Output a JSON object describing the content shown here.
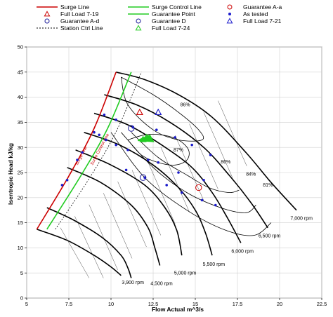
{
  "chart_data": {
    "type": "line",
    "title": "",
    "xlabel": "Flow Actual m^3/s",
    "ylabel": "Isentropic Head kJ/kg",
    "xlim": [
      5,
      22.5
    ],
    "ylim": [
      0,
      50
    ],
    "xticks": [
      "5",
      "7.5",
      "10",
      "12.5",
      "15",
      "17.5",
      "20",
      "22.5"
    ],
    "yticks": [
      "0",
      "5",
      "10",
      "15",
      "20",
      "25",
      "30",
      "35",
      "40",
      "45",
      "50"
    ],
    "grid": true,
    "legend_position": "top",
    "legend": [
      {
        "key": "surge",
        "label": "Surge Line",
        "symbol": "line",
        "color": "#cc0000",
        "dash": ""
      },
      {
        "key": "scl",
        "label": "Surge Control Line",
        "symbol": "line",
        "color": "#22cc22",
        "dash": ""
      },
      {
        "key": "gaa",
        "label": "Guarantee A-a",
        "symbol": "circle",
        "color": "#cc0000"
      },
      {
        "key": "fl719",
        "label": "Full Load 7-19",
        "symbol": "triangle",
        "color": "#cc0000"
      },
      {
        "key": "gp",
        "label": "Guarantee Point",
        "symbol": "line",
        "color": "#22cc22",
        "dash": ""
      },
      {
        "key": "tested",
        "label": "As tested",
        "symbol": "dot",
        "color": "#1a1acc"
      },
      {
        "key": "gad",
        "label": "Guarantee A-d",
        "symbol": "circle",
        "color": "#1a1a99"
      },
      {
        "key": "gd",
        "label": "Guarantee D",
        "symbol": "circle",
        "color": "#1a1a99"
      },
      {
        "key": "fl721",
        "label": "Full Load 7-21",
        "symbol": "triangle",
        "color": "#1a1acc"
      },
      {
        "key": "station",
        "label": "Station Ctrl Line",
        "symbol": "line",
        "color": "#000000",
        "dash": "2,2"
      },
      {
        "key": "fl724",
        "label": "Full Load 7-24",
        "symbol": "triangle",
        "color": "#22cc22"
      }
    ],
    "surge_line": {
      "label": "Surge Line",
      "x": [
        5.6,
        7.5,
        9.0,
        10.3
      ],
      "y": [
        13.7,
        24.3,
        33.8,
        45.0
      ]
    },
    "surge_control_line": {
      "label": "Surge Control Line",
      "x": [
        6.2,
        8.2,
        9.8,
        11.2
      ],
      "y": [
        13.7,
        24.3,
        33.8,
        45.0
      ]
    },
    "station_ctrl_line": {
      "x": [
        6.7,
        8.8,
        10.4,
        11.8
      ],
      "y": [
        13.7,
        24.3,
        33.8,
        45.0
      ]
    },
    "speed_lines": [
      {
        "label": "7,000 rpm",
        "x": [
          10.3,
          12.0,
          14.0,
          16.0,
          18.0,
          19.5,
          21.0
        ],
        "y": [
          45.0,
          43.5,
          40.5,
          36.0,
          29.0,
          23.0,
          17.5
        ]
      },
      {
        "label": "6,500 rpm",
        "x": [
          9.6,
          11.5,
          13.5,
          15.5,
          17.0,
          18.3,
          19.3
        ],
        "y": [
          40.5,
          38.5,
          35.0,
          30.0,
          24.5,
          19.0,
          14.0
        ]
      },
      {
        "label": "6,000 rpm",
        "x": [
          9.0,
          11.0,
          13.0,
          14.8,
          16.0,
          16.9,
          17.7
        ],
        "y": [
          36.8,
          34.5,
          30.5,
          26.0,
          21.0,
          16.0,
          11.0
        ]
      },
      {
        "label": "5,500 rpm",
        "x": [
          8.4,
          10.5,
          12.5,
          14.0,
          15.0,
          15.6,
          16.0
        ],
        "y": [
          33.0,
          30.5,
          26.5,
          22.0,
          17.5,
          13.0,
          8.5
        ]
      },
      {
        "label": "5,000 rpm",
        "x": [
          7.9,
          10.0,
          12.0,
          13.2,
          13.9,
          14.2
        ],
        "y": [
          29.5,
          26.5,
          22.5,
          18.0,
          13.5,
          8.5
        ]
      },
      {
        "label": "4,500 rpm",
        "x": [
          7.4,
          9.4,
          11.2,
          12.2,
          12.6,
          12.9
        ],
        "y": [
          26.0,
          23.0,
          18.5,
          14.0,
          10.0,
          6.5
        ]
      },
      {
        "label": "3,900 rpm",
        "x": [
          6.2,
          7.8,
          9.5,
          10.6,
          11.0,
          11.2
        ],
        "y": [
          18.0,
          15.5,
          12.0,
          8.5,
          6.0,
          4.0
        ]
      },
      {
        "label": "",
        "x": [
          5.6,
          7.4,
          9.0,
          10.0,
          10.6
        ],
        "y": [
          13.7,
          11.5,
          8.5,
          6.2,
          4.5
        ]
      }
    ],
    "efficiency_contours": [
      {
        "label": "86%",
        "x": [
          10.6,
          12.5,
          14.0,
          15.2,
          15.4,
          14.0,
          12.5,
          11.0,
          10.6
        ],
        "y": [
          44.0,
          40.5,
          37.0,
          33.5,
          31.5,
          31.5,
          33.5,
          38.5,
          44.0
        ]
      },
      {
        "label": "87%",
        "x": [
          11.0,
          12.0,
          13.0,
          14.0,
          14.6,
          14.5,
          13.8,
          12.8,
          11.8,
          11.0
        ],
        "y": [
          31.5,
          32.5,
          32.5,
          31.5,
          29.5,
          27.5,
          26.5,
          27.0,
          28.5,
          31.5
        ]
      },
      {
        "label": "86%",
        "x": [
          11.2,
          12.8,
          14.5,
          15.8,
          17.0,
          17.6
        ],
        "y": [
          33.0,
          28.0,
          24.5,
          22.0,
          21.0,
          21.5
        ]
      },
      {
        "label": "84%",
        "x": [
          10.6,
          12.5,
          14.5,
          16.5,
          18.0,
          18.6
        ],
        "y": [
          33.0,
          26.0,
          21.0,
          18.0,
          17.0,
          18.5
        ]
      },
      {
        "label": "81%",
        "x": [
          10.0,
          12.0,
          14.5,
          16.8,
          18.5,
          19.5
        ],
        "y": [
          33.0,
          24.0,
          17.5,
          13.5,
          12.5,
          15.0
        ]
      }
    ],
    "series": [
      {
        "name": "As tested",
        "symbol": "dot",
        "color": "#1a1acc",
        "x": [
          7.1,
          7.4,
          8.0,
          9.0,
          9.3,
          9.7,
          10.3,
          11.0,
          12.2,
          12.8,
          14.0,
          15.5,
          8.3,
          9.6,
          10.3,
          11.3,
          12.7,
          13.8,
          14.8,
          15.9,
          10.9,
          12.0,
          13.3,
          14.2,
          15.4,
          16.2
        ],
        "y": [
          22.5,
          23.5,
          27.5,
          33.0,
          32.5,
          31.5,
          30.5,
          29.5,
          27.5,
          27.0,
          25.0,
          23.5,
          29.0,
          36.5,
          35.5,
          34.0,
          33.5,
          32.0,
          30.5,
          28.5,
          25.5,
          24.0,
          22.5,
          21.0,
          19.5,
          18.5
        ]
      },
      {
        "name": "Guarantee A-a",
        "symbol": "circle",
        "color": "#cc0000",
        "x": [
          15.2
        ],
        "y": [
          22.0
        ]
      },
      {
        "name": "Guarantee A-d",
        "symbol": "circle",
        "color": "#1a1a99",
        "x": [
          11.2,
          11.9
        ],
        "y": [
          33.8,
          24.0
        ]
      },
      {
        "name": "Full Load 7-19",
        "symbol": "triangle",
        "color": "#cc0000",
        "x": [
          11.7
        ],
        "y": [
          37.0
        ]
      },
      {
        "name": "Full Load 7-21",
        "symbol": "triangle",
        "color": "#1a1acc",
        "x": [
          12.8
        ],
        "y": [
          37.0
        ]
      },
      {
        "name": "Full Load 7-24",
        "symbol": "triangle",
        "color": "#22cc22",
        "x": [
          11.9,
          12.1
        ],
        "y": [
          31.6,
          32.0
        ]
      }
    ],
    "line_annotations": [
      {
        "text": "Surge Line",
        "x": 8.3,
        "y": 28.2
      },
      {
        "text": "Surge Control Line",
        "x": 9.4,
        "y": 29.5
      }
    ]
  }
}
